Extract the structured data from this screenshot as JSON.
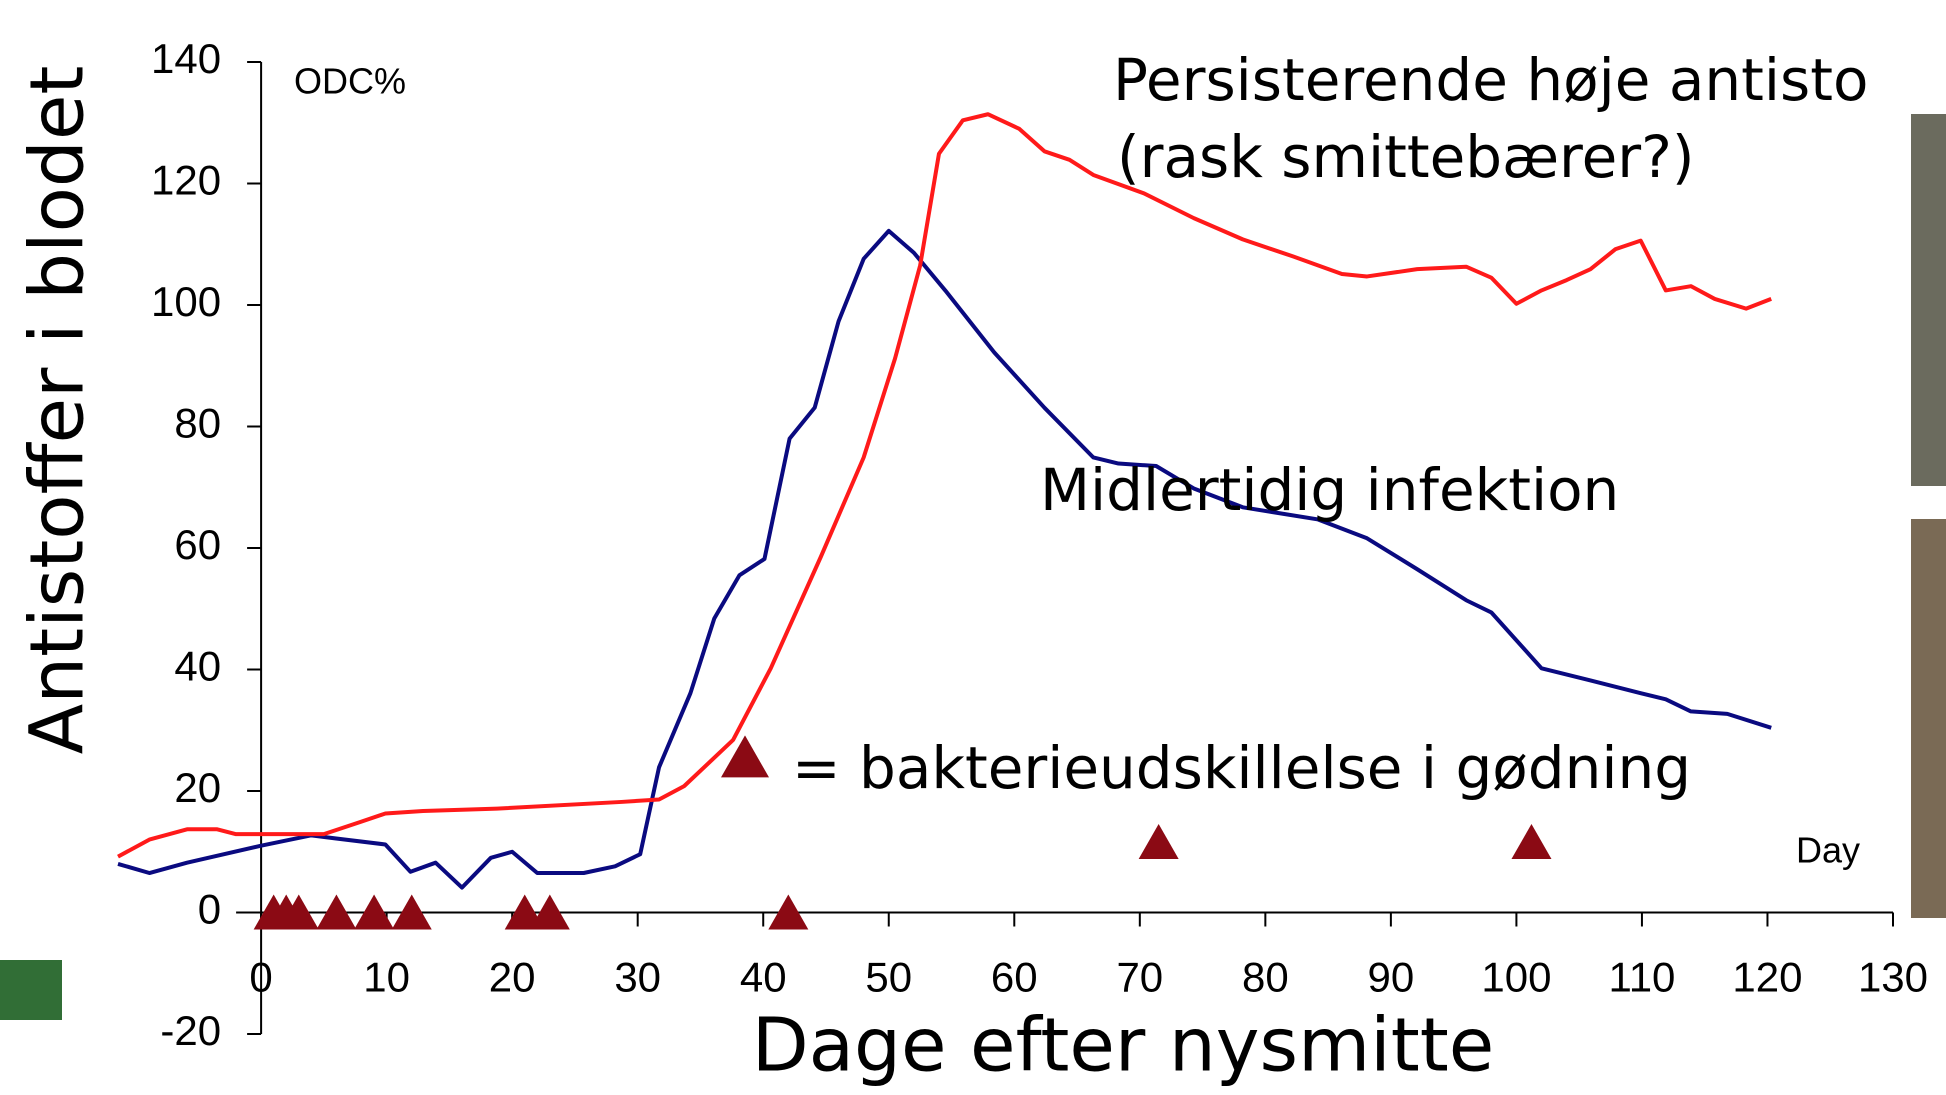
{
  "chart_data": {
    "type": "line",
    "y_label": "Antistoffer i blodet",
    "x_label": "Dage efter nysmitte",
    "xlim": [
      -11.4,
      130
    ],
    "ylim": [
      -20,
      140
    ],
    "xticks": [
      0,
      10,
      20,
      30,
      40,
      50,
      60,
      70,
      80,
      90,
      100,
      110,
      120,
      130
    ],
    "yticks": [
      -20,
      0,
      20,
      40,
      60,
      80,
      100,
      120,
      140
    ],
    "annotations": [
      {
        "text": "ODC%",
        "color": "#000000"
      },
      {
        "text": "Day",
        "color": "#000000"
      },
      {
        "text": "Persisterende høje antisto",
        "color": "#a00000"
      },
      {
        "text": "(rask smittebærer?)",
        "color": "#a00000"
      },
      {
        "text": "Midlertidig infektion",
        "color": "#0a0a80"
      }
    ],
    "series": [
      {
        "color": "#0a0a80",
        "x": [
          -11.4,
          -8.9,
          -5.9,
          0,
          4.0,
          5.9,
          9.9,
          11.9,
          13.9,
          16.0,
          18.3,
          20.0,
          22.0,
          25.7,
          28.2,
          30.2,
          31.7,
          34.2,
          36.1,
          38.1,
          40.1,
          42.1,
          44.1,
          46.0,
          48.0,
          50.0,
          52.0,
          54.5,
          58.4,
          62.4,
          66.3,
          68.3,
          71.3,
          74.3,
          78.2,
          84.2,
          88.1,
          92.1,
          96.0,
          98.0,
          102.0,
          105.9,
          109.9,
          111.9,
          113.9,
          116.8,
          120.3
        ],
        "values": [
          8.0,
          6.5,
          8.2,
          11.0,
          12.7,
          12.2,
          11.2,
          6.7,
          8.2,
          4.1,
          9.0,
          10.0,
          6.5,
          6.5,
          7.6,
          9.6,
          23.9,
          36.1,
          48.4,
          55.5,
          58.2,
          78.0,
          83.1,
          97.3,
          107.6,
          112.2,
          108.6,
          102.4,
          92.2,
          83.1,
          74.9,
          73.9,
          73.5,
          69.8,
          66.7,
          64.7,
          61.6,
          56.5,
          51.4,
          49.4,
          40.2,
          38.2,
          36.1,
          35.1,
          33.1,
          32.7,
          30.4
        ]
      },
      {
        "color": "#ff1a1a",
        "x": [
          -11.4,
          -8.9,
          -5.9,
          -3.5,
          -2.0,
          5.0,
          7.9,
          9.9,
          12.9,
          18.8,
          28.7,
          31.7,
          33.7,
          37.6,
          40.6,
          44.6,
          48.0,
          50.5,
          52.5,
          54.0,
          55.9,
          57.9,
          60.4,
          62.4,
          64.4,
          66.3,
          70.3,
          74.3,
          78.2,
          82.2,
          86.1,
          88.1,
          92.1,
          96.0,
          98.0,
          100.0,
          102.0,
          104.0,
          105.9,
          107.9,
          109.9,
          111.9,
          113.9,
          115.8,
          118.3,
          120.3
        ],
        "values": [
          9.2,
          12.0,
          13.7,
          13.7,
          12.9,
          12.9,
          14.9,
          16.3,
          16.7,
          17.1,
          18.2,
          18.6,
          20.8,
          28.4,
          40.2,
          58.6,
          74.9,
          91.2,
          106.5,
          124.9,
          130.4,
          131.4,
          129.0,
          125.3,
          123.9,
          121.4,
          118.4,
          114.3,
          110.8,
          108.0,
          105.1,
          104.7,
          105.9,
          106.3,
          104.5,
          100.2,
          102.4,
          104.1,
          105.9,
          109.2,
          110.6,
          102.4,
          103.1,
          101.0,
          99.4,
          101.0
        ]
      },
      {
        "name": "= bakterieudskillelse i gødning",
        "marker": "triangle",
        "color": "#8b0a14",
        "x": [
          1,
          2,
          3,
          6,
          9,
          12,
          21,
          23,
          42,
          71.5,
          101.2
        ],
        "values": [
          0,
          0,
          0,
          0,
          0,
          0,
          0,
          0,
          0,
          11.6,
          11.6
        ]
      }
    ]
  }
}
